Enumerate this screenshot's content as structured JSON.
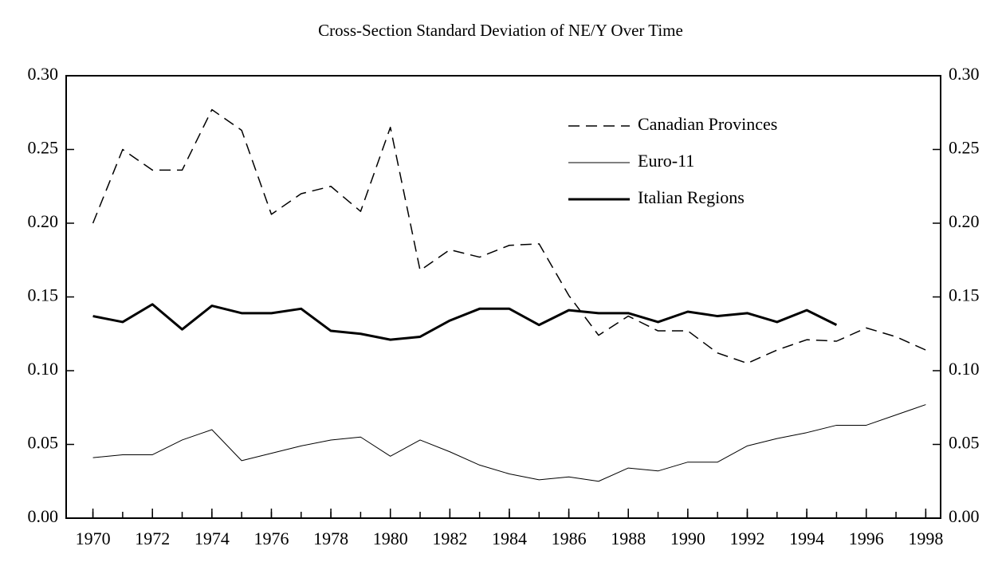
{
  "chart_data": {
    "type": "line",
    "title": "Cross-Section Standard Deviation of NE/Y Over Time",
    "x": [
      1970,
      1971,
      1972,
      1973,
      1974,
      1975,
      1976,
      1977,
      1978,
      1979,
      1980,
      1981,
      1982,
      1983,
      1984,
      1985,
      1986,
      1987,
      1988,
      1989,
      1990,
      1991,
      1992,
      1993,
      1994,
      1995,
      1996,
      1997,
      1998
    ],
    "series": [
      {
        "name": "Canadian Provinces",
        "color": "#000000",
        "dash": true,
        "width": 1.5,
        "values": [
          0.2,
          0.25,
          0.236,
          0.236,
          0.277,
          0.263,
          0.206,
          0.22,
          0.225,
          0.208,
          0.265,
          0.168,
          0.182,
          0.177,
          0.185,
          0.186,
          0.151,
          0.124,
          0.137,
          0.127,
          0.127,
          0.112,
          0.105,
          0.114,
          0.121,
          0.12,
          0.129,
          0.123,
          0.114
        ]
      },
      {
        "name": "Euro-11",
        "color": "#000000",
        "dash": false,
        "width": 1,
        "values": [
          0.041,
          0.043,
          0.043,
          0.053,
          0.06,
          0.039,
          0.044,
          0.049,
          0.053,
          0.055,
          0.042,
          0.053,
          0.045,
          0.036,
          0.03,
          0.026,
          0.028,
          0.025,
          0.034,
          0.032,
          0.038,
          0.038,
          0.049,
          0.054,
          0.058,
          0.063,
          0.063,
          0.07,
          0.077
        ]
      },
      {
        "name": "Italian Regions",
        "color": "#000000",
        "dash": false,
        "width": 3,
        "values": [
          0.137,
          0.133,
          0.145,
          0.128,
          0.144,
          0.139,
          0.139,
          0.142,
          0.127,
          0.125,
          0.121,
          0.123,
          0.134,
          0.142,
          0.142,
          0.131,
          0.141,
          0.139,
          0.139,
          0.133,
          0.14,
          0.137,
          0.139,
          0.133,
          0.141,
          0.131,
          null,
          null,
          null
        ]
      }
    ],
    "xlim": [
      1969.1,
      1998.5
    ],
    "xticks": [
      1970,
      1972,
      1974,
      1976,
      1978,
      1980,
      1982,
      1984,
      1986,
      1988,
      1990,
      1992,
      1994,
      1996,
      1998
    ],
    "ylim": [
      0,
      0.3
    ],
    "yticks": [
      {
        "value": 0,
        "label": "0.00"
      },
      0.05,
      {
        "value": 0.1,
        "label": "0.10"
      },
      0.15,
      {
        "value": 0.2,
        "label": "0.20"
      },
      0.25,
      {
        "value": 0.3,
        "label": "0.30"
      }
    ],
    "y2lim": [
      0,
      0.3
    ],
    "y2ticks": [
      {
        "value": 0,
        "label": "0.00"
      },
      0.05,
      {
        "value": 0.1,
        "label": "0.10"
      },
      0.15,
      {
        "value": 0.2,
        "label": "0.20"
      },
      0.25,
      {
        "value": 0.3,
        "label": "0.30"
      }
    ],
    "legend": "upper right"
  }
}
